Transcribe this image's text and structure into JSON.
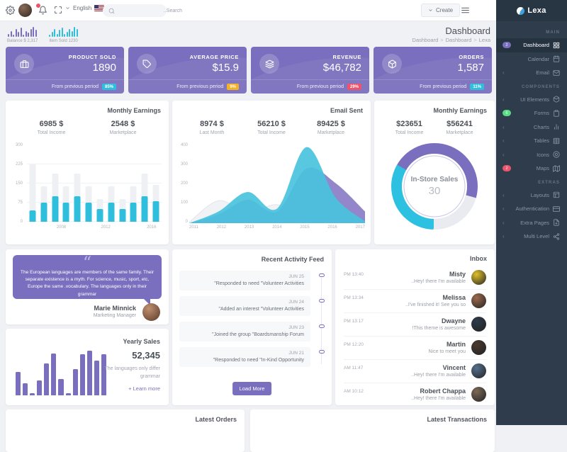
{
  "brand": {
    "name": "Lexa"
  },
  "navbar": {
    "language": "English",
    "search_placeholder": "..Search",
    "create_label": "Create"
  },
  "page_header": {
    "title": "Dashboard",
    "breadcrumb": [
      "Dashboard",
      "Dashboard",
      "Lexa"
    ],
    "mini_stats": [
      {
        "label": "Balance $ 2,317",
        "color": "#7a6fbe",
        "bars": [
          3,
          6,
          2,
          8,
          5,
          9,
          2,
          6,
          4,
          8,
          10,
          7
        ]
      },
      {
        "label": "Item Sold 1230",
        "color": "#2fbfdc",
        "bars": [
          2,
          5,
          8,
          3,
          7,
          9,
          3,
          5,
          8,
          6,
          10,
          8
        ]
      }
    ]
  },
  "stat_cards": [
    {
      "icon": "briefcase-icon",
      "title": "PRODUCT SOLD",
      "value": "1890",
      "period_label": "From previous period",
      "badge": "85%",
      "badge_color": "#2fbfdc"
    },
    {
      "icon": "tag-icon",
      "title": "AVERAGE PRICE",
      "value": "$15.9",
      "period_label": "From previous period",
      "badge": "9%",
      "badge_color": "#f5b225"
    },
    {
      "icon": "layers-icon",
      "title": "REVENUE",
      "value": "$46,782",
      "period_label": "From previous period",
      "badge": "29%",
      "badge_color": "#ec536c"
    },
    {
      "icon": "box-icon",
      "title": "ORDERS",
      "value": "1,587",
      "period_label": "From previous period",
      "badge": "11%",
      "badge_color": "#2fbfdc"
    }
  ],
  "monthly_earnings": {
    "title": "Monthly Earnings",
    "stats": [
      {
        "value": "6985 $",
        "label": "Total Income"
      },
      {
        "value": "2548 $",
        "label": "Marketplace"
      }
    ],
    "chart_data": {
      "type": "bar",
      "ylim": [
        0,
        300
      ],
      "yticks": [
        "300",
        "225",
        "150",
        "75",
        "0"
      ],
      "x_labels": [
        "2008",
        "2012",
        "2016"
      ],
      "series": [
        {
          "name": "Total",
          "color": "#eef0f4",
          "values": [
            225,
            140,
            190,
            140,
            190,
            140,
            90,
            140,
            90,
            140,
            190,
            145
          ]
        },
        {
          "name": "Earnings",
          "color": "#2fbfdc",
          "values": [
            45,
            75,
            100,
            75,
            100,
            75,
            50,
            75,
            50,
            75,
            100,
            80
          ]
        }
      ]
    }
  },
  "email_sent": {
    "title": "Email Sent",
    "stats": [
      {
        "value": "8974 $",
        "label": "Last Month"
      },
      {
        "value": "56210 $",
        "label": "Total Income"
      },
      {
        "value": "89425 $",
        "label": "Marketplace"
      }
    ],
    "chart_data": {
      "type": "area",
      "x": [
        "2011",
        "2012",
        "2013",
        "2014",
        "2015",
        "2016",
        "2017"
      ],
      "ylim": [
        0,
        400
      ],
      "yticks": [
        "400",
        "300",
        "200",
        "100",
        "0"
      ],
      "series": [
        {
          "name": "Series A",
          "color": "#f0f1f5",
          "stroke": "#e2e4ea",
          "values": [
            5,
            115,
            55,
            95,
            30,
            60,
            20
          ]
        },
        {
          "name": "Series B",
          "color": "#8a7cc6",
          "values": [
            0,
            45,
            120,
            60,
            280,
            205,
            60
          ]
        },
        {
          "name": "Series C",
          "color": "#49c3dd",
          "values": [
            0,
            60,
            160,
            75,
            390,
            130,
            10
          ]
        }
      ]
    }
  },
  "instore_sales": {
    "title": "Monthly Earnings",
    "stats": [
      {
        "value": "$23651",
        "label": "Total Income"
      },
      {
        "value": "$56241",
        "label": "Marketplace"
      }
    ],
    "chart_data": {
      "type": "donut",
      "center_label": "In-Store Sales",
      "center_value": "30",
      "start_angle": 300,
      "segments": [
        {
          "name": "segment-1",
          "value": 46,
          "color": "#7a6fbe"
        },
        {
          "name": "segment-2",
          "value": 21,
          "color": "#eaebf0"
        },
        {
          "name": "segment-3",
          "value": 33,
          "color": "#2cc1e0"
        }
      ]
    }
  },
  "quote_card": {
    "text": "The European languages are members of the same family. Their separate existence is a myth. For science, music, sport, etc, Europe the same .vocabulary. The languages only in their grammar",
    "author": "Marie Minnick",
    "role": "Marketing Manager"
  },
  "activity_feed": {
    "title": "Recent Activity Feed",
    "items": [
      {
        "date": "JUN 25",
        "text": "\"Responded to need \"Volunteer Activities"
      },
      {
        "date": "JUN 24",
        "text": "\"Added an interest \"Volunteer Activities"
      },
      {
        "date": "JUN 23",
        "text": "\"Joined the group \"Boardsmanship Forum"
      },
      {
        "date": "JUN 21",
        "text": "\"Responded to need \"In-Kind Opportunity"
      }
    ],
    "load_more_label": "Load More"
  },
  "inbox": {
    "title": "Inbox",
    "messages": [
      {
        "time": "PM 13:40",
        "name": "Misty",
        "text": "..Hey! there I'm available",
        "avatar_color": "#dfc02a"
      },
      {
        "time": "PM 13:34",
        "name": "Melissa",
        "text": "..I've finished it! See you so",
        "avatar_color": "#9c6b4e"
      },
      {
        "time": "PM 13:17",
        "name": "Dwayne",
        "text": "!This theme is awesome",
        "avatar_color": "#2e3b4a"
      },
      {
        "time": "PM 12:20",
        "name": "Martin",
        "text": "Nice to meet you",
        "avatar_color": "#4a3a30"
      },
      {
        "time": "AM 11:47",
        "name": "Vincent",
        "text": "..Hey! there I'm available",
        "avatar_color": "#56718d"
      },
      {
        "time": "AM 10:12",
        "name": "Robert Chappa",
        "text": "..Hey! there I'm available",
        "avatar_color": "#7d6a57"
      }
    ]
  },
  "yearly_sales": {
    "title": "Yearly Sales",
    "value": "52,345",
    "description": "The languages only differ grammar",
    "link_label": "+ Learn more",
    "chart_data": {
      "type": "bar",
      "color": "#7a6fbe",
      "ylim": [
        0,
        80
      ],
      "values": [
        38,
        20,
        3,
        24,
        52,
        68,
        26,
        3,
        42,
        66,
        72,
        56,
        66
      ]
    }
  },
  "bottom_cards": [
    {
      "title": "Latest Orders"
    },
    {
      "title": "Latest Transactions"
    }
  ],
  "sidebar": {
    "sections": [
      {
        "header": "MAIN",
        "items": [
          {
            "label": "Dashboard",
            "icon": "grid-icon",
            "active": true,
            "badge": {
              "text": "2",
              "color": "#7a6fbe"
            }
          },
          {
            "label": "Calendar",
            "icon": "calendar-icon"
          },
          {
            "label": "Email",
            "icon": "mail-icon",
            "expandable": true
          }
        ]
      },
      {
        "header": "COMPONENTS",
        "items": [
          {
            "label": "UI Elements",
            "icon": "package-icon",
            "expandable": true
          },
          {
            "label": "Forms",
            "icon": "clipboard-icon",
            "badge": {
              "text": "6",
              "color": "#58db83"
            }
          },
          {
            "label": "Charts",
            "icon": "chart-icon",
            "expandable": true
          },
          {
            "label": "Tables",
            "icon": "table-icon",
            "expandable": true
          },
          {
            "label": "Icons",
            "icon": "target-icon",
            "expandable": true
          },
          {
            "label": "Maps",
            "icon": "map-icon",
            "badge": {
              "text": "2",
              "color": "#ec536c"
            }
          }
        ]
      },
      {
        "header": "EXTRAS",
        "items": [
          {
            "label": "Layouts",
            "icon": "layout-icon",
            "expandable": true
          },
          {
            "label": "Authentication",
            "icon": "id-card-icon",
            "expandable": true
          },
          {
            "label": "Extra Pages",
            "icon": "file-plus-icon",
            "expandable": true
          },
          {
            "label": "Multi Level",
            "icon": "share-icon",
            "expandable": true
          }
        ]
      }
    ]
  },
  "colors": {
    "primary": "#7a6fbe",
    "info": "#2fbfdc",
    "warning": "#f5b225",
    "danger": "#ec536c",
    "success": "#58db83",
    "sidebar_bg": "#2e3c4b"
  }
}
